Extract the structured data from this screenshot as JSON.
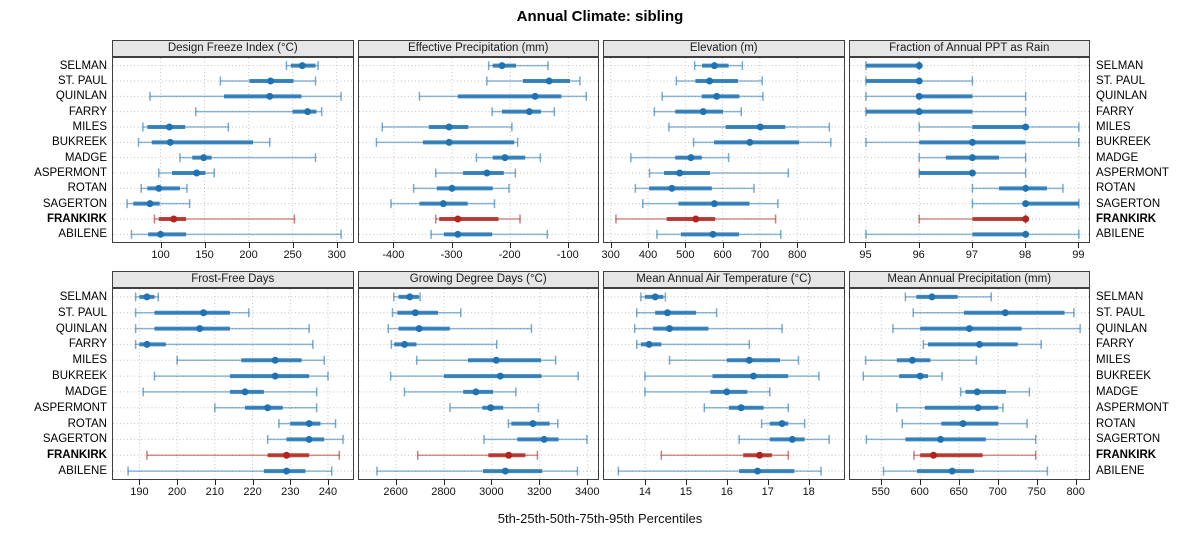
{
  "title": "Annual Climate: sibling",
  "caption": "5th-25th-50th-75th-95th Percentiles",
  "stations": [
    "SELMAN",
    "ST. PAUL",
    "QUINLAN",
    "FARRY",
    "MILES",
    "BUKREEK",
    "MADGE",
    "ASPERMONT",
    "ROTAN",
    "SAGERTON",
    "FRANKIRK",
    "ABILENE"
  ],
  "highlight_station": "FRANKIRK",
  "colors": {
    "series": "#1F73B3",
    "highlight": "#B2241F",
    "strip_bg": "#E6E6E6",
    "panel_border": "#3F3F3F",
    "grid": "#C4C4C4"
  },
  "chart_data": {
    "type": "scatter",
    "subtype": "percentile-dot-interval-trellis",
    "percentiles": [
      5,
      25,
      50,
      75,
      95
    ],
    "legend_position": "none",
    "grid": "dotted",
    "layout": {
      "rows": 2,
      "cols": 4
    },
    "panels": [
      {
        "title": "Design Freeze Index (°C)",
        "ticks": [
          100,
          150,
          200,
          250,
          300
        ],
        "xlim": [
          46,
          318
        ],
        "values": [
          [
            243,
            248,
            261,
            276,
            279
          ],
          [
            168,
            201,
            225,
            251,
            276
          ],
          [
            88,
            172,
            224,
            260,
            305
          ],
          [
            140,
            250,
            267,
            277,
            283
          ],
          [
            80,
            85,
            110,
            128,
            177
          ],
          [
            75,
            90,
            111,
            205,
            224
          ],
          [
            122,
            136,
            149,
            158,
            276
          ],
          [
            98,
            113,
            141,
            151,
            161
          ],
          [
            78,
            85,
            98,
            122,
            130
          ],
          [
            62,
            69,
            88,
            99,
            133
          ],
          [
            93,
            98,
            115,
            129,
            252
          ],
          [
            67,
            86,
            100,
            129,
            305
          ]
        ]
      },
      {
        "title": "Effective Precipitation (mm)",
        "ticks": [
          -400,
          -300,
          -200,
          -100
        ],
        "xlim": [
          -460,
          -48
        ],
        "values": [
          [
            -237,
            -230,
            -214,
            -190,
            -135
          ],
          [
            -240,
            -178,
            -133,
            -97,
            -80
          ],
          [
            -356,
            -290,
            -157,
            -112,
            -69
          ],
          [
            -231,
            -214,
            -167,
            -147,
            -124
          ],
          [
            -420,
            -340,
            -305,
            -272,
            -197
          ],
          [
            -430,
            -350,
            -305,
            -193,
            -187
          ],
          [
            -258,
            -230,
            -209,
            -174,
            -148
          ],
          [
            -328,
            -281,
            -240,
            -211,
            -191
          ],
          [
            -366,
            -326,
            -300,
            -230,
            -202
          ],
          [
            -405,
            -356,
            -315,
            -273,
            -227
          ],
          [
            -328,
            -322,
            -290,
            -220,
            -183
          ],
          [
            -336,
            -314,
            -290,
            -231,
            -136
          ]
        ]
      },
      {
        "title": "Elevation (m)",
        "ticks": [
          300,
          400,
          500,
          600,
          700,
          800
        ],
        "xlim": [
          282,
          924
        ],
        "values": [
          [
            525,
            545,
            578,
            616,
            653
          ],
          [
            476,
            527,
            565,
            641,
            706
          ],
          [
            438,
            544,
            584,
            645,
            708
          ],
          [
            417,
            473,
            548,
            601,
            650
          ],
          [
            456,
            608,
            701,
            768,
            886
          ],
          [
            522,
            577,
            673,
            805,
            890
          ],
          [
            354,
            473,
            515,
            544,
            616
          ],
          [
            404,
            443,
            485,
            566,
            776
          ],
          [
            366,
            403,
            464,
            571,
            684
          ],
          [
            386,
            482,
            578,
            672,
            748
          ],
          [
            314,
            450,
            528,
            580,
            742
          ],
          [
            424,
            488,
            574,
            644,
            756
          ]
        ]
      },
      {
        "title": "Fraction of Annual PPT as Rain",
        "ticks": [
          95,
          96,
          97,
          98,
          99
        ],
        "xlim": [
          94.7,
          99.2
        ],
        "values": [
          [
            95,
            95,
            96,
            96,
            96
          ],
          [
            95,
            95,
            96,
            96,
            97
          ],
          [
            95,
            96,
            96,
            97,
            98
          ],
          [
            95,
            95,
            96,
            97,
            98
          ],
          [
            96,
            97,
            98,
            98,
            99
          ],
          [
            95,
            96,
            97,
            98,
            99
          ],
          [
            96,
            96.5,
            97,
            97.5,
            98
          ],
          [
            96,
            96,
            97,
            97,
            98
          ],
          [
            97,
            97.5,
            98,
            98.4,
            98.7
          ],
          [
            97,
            98,
            98,
            99,
            99
          ],
          [
            96,
            97,
            98,
            98,
            98
          ],
          [
            95,
            97,
            98,
            98,
            99
          ]
        ]
      },
      {
        "title": "Frost-Free Days",
        "ticks": [
          190,
          200,
          210,
          220,
          230,
          240
        ],
        "xlim": [
          183,
          246.5
        ],
        "values": [
          [
            189,
            190,
            192,
            194,
            195
          ],
          [
            189,
            194,
            207,
            214,
            219
          ],
          [
            189,
            194,
            206,
            214,
            235
          ],
          [
            189,
            190,
            192,
            197,
            236
          ],
          [
            200,
            217,
            226,
            233,
            239
          ],
          [
            194,
            214,
            226,
            235,
            240
          ],
          [
            191,
            214,
            218,
            223,
            237
          ],
          [
            210,
            218,
            224,
            228,
            237
          ],
          [
            227,
            230,
            235,
            238,
            242
          ],
          [
            224,
            229,
            235,
            239,
            244
          ],
          [
            192,
            224,
            229,
            235,
            243
          ],
          [
            187,
            223,
            229,
            234,
            241
          ]
        ]
      },
      {
        "title": "Growing Degree Days (°C)",
        "ticks": [
          2600,
          2800,
          3000,
          3200,
          3400
        ],
        "xlim": [
          2445,
          3445
        ],
        "values": [
          [
            2590,
            2610,
            2657,
            2695,
            2700
          ],
          [
            2585,
            2605,
            2680,
            2775,
            2870
          ],
          [
            2567,
            2610,
            2696,
            2824,
            3165
          ],
          [
            2580,
            2592,
            2635,
            2685,
            3020
          ],
          [
            2686,
            2900,
            3018,
            3205,
            3266
          ],
          [
            2577,
            2800,
            3035,
            3207,
            3360
          ],
          [
            2635,
            2880,
            2933,
            3005,
            3100
          ],
          [
            2825,
            2960,
            2995,
            3047,
            3194
          ],
          [
            3069,
            3081,
            3171,
            3241,
            3275
          ],
          [
            2967,
            3106,
            3218,
            3278,
            3397
          ],
          [
            2690,
            2985,
            3070,
            3140,
            3190
          ],
          [
            2520,
            2963,
            3056,
            3210,
            3357
          ]
        ]
      },
      {
        "title": "Mean Annual Air Temperature (°C)",
        "ticks": [
          14,
          15,
          16,
          17,
          18
        ],
        "xlim": [
          13.0,
          18.85
        ],
        "values": [
          [
            13.9,
            14.0,
            14.25,
            14.45,
            14.5
          ],
          [
            13.8,
            14.25,
            14.55,
            15.25,
            15.75
          ],
          [
            13.75,
            14.2,
            14.6,
            15.55,
            17.35
          ],
          [
            13.8,
            13.9,
            14.1,
            14.4,
            16.55
          ],
          [
            14.6,
            16.0,
            16.55,
            17.3,
            17.75
          ],
          [
            14.0,
            15.65,
            16.65,
            17.5,
            18.25
          ],
          [
            14.0,
            15.6,
            16.0,
            16.5,
            17.05
          ],
          [
            15.45,
            16.05,
            16.35,
            16.9,
            17.5
          ],
          [
            16.85,
            17.05,
            17.35,
            17.5,
            17.9
          ],
          [
            16.3,
            17.05,
            17.6,
            17.9,
            18.5
          ],
          [
            14.4,
            16.4,
            16.8,
            17.1,
            17.5
          ],
          [
            13.35,
            16.3,
            16.75,
            17.65,
            18.3
          ]
        ]
      },
      {
        "title": "Mean Annual Precipitation (mm)",
        "ticks": [
          550,
          600,
          650,
          700,
          750,
          800
        ],
        "xlim": [
          510,
          817
        ],
        "values": [
          [
            581,
            595,
            615,
            648,
            691
          ],
          [
            591,
            656,
            709,
            785,
            797
          ],
          [
            565,
            600,
            663,
            730,
            805
          ],
          [
            604,
            610,
            676,
            725,
            755
          ],
          [
            530,
            570,
            590,
            613,
            672
          ],
          [
            527,
            573,
            600,
            610,
            628
          ],
          [
            652,
            658,
            673,
            710,
            740
          ],
          [
            570,
            606,
            674,
            700,
            706
          ],
          [
            577,
            627,
            655,
            700,
            737
          ],
          [
            531,
            581,
            626,
            684,
            748
          ],
          [
            592,
            600,
            617,
            680,
            748
          ],
          [
            553,
            596,
            641,
            669,
            763
          ]
        ]
      }
    ]
  }
}
